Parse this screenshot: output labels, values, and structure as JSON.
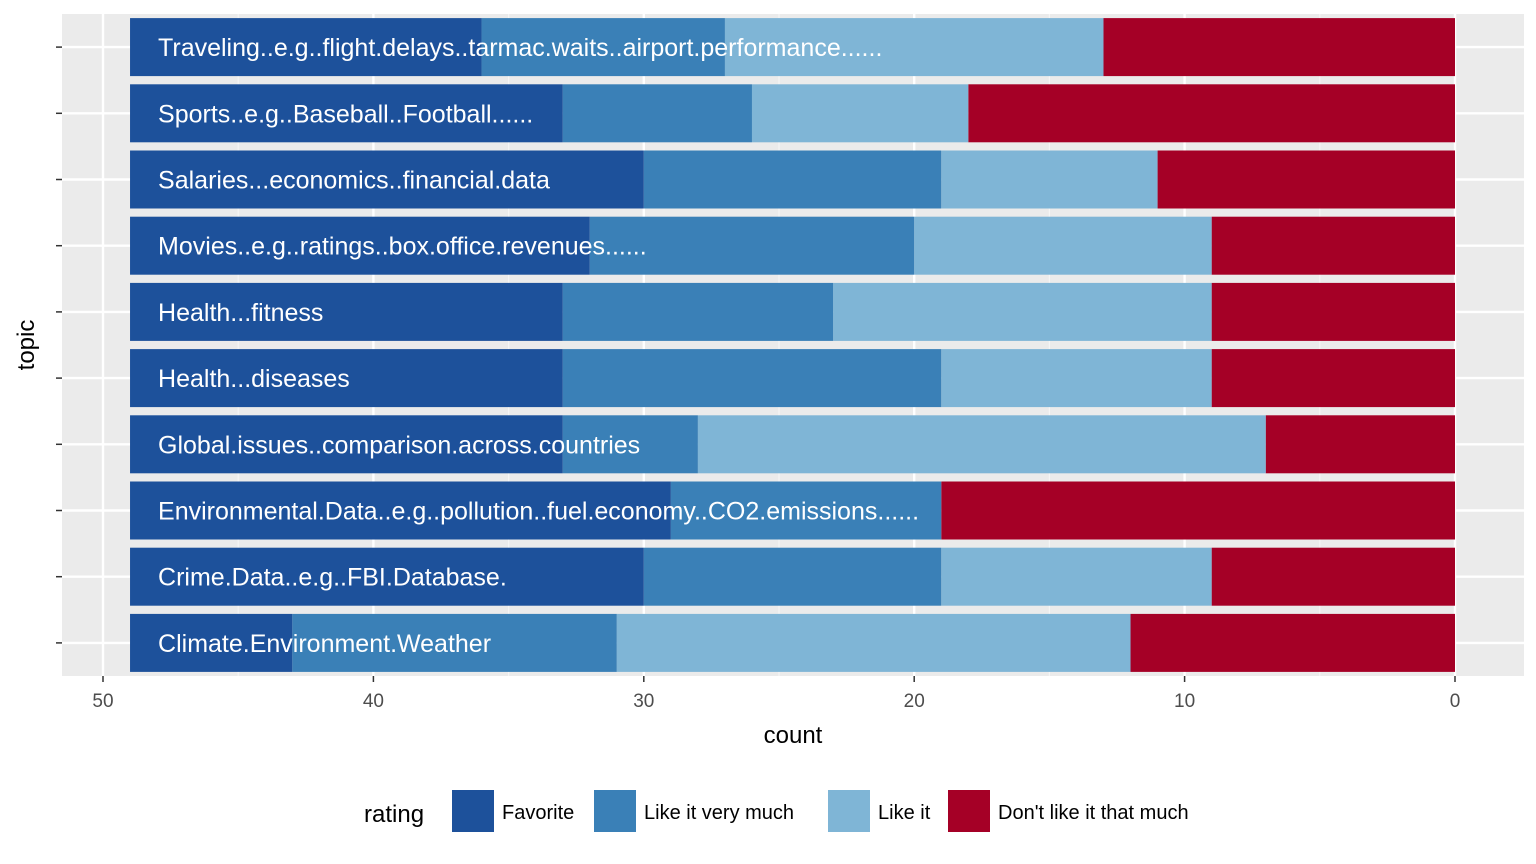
{
  "chart_data": {
    "type": "bar",
    "orientation": "horizontal",
    "stacked": true,
    "x_reversed": true,
    "xlabel": "count",
    "ylabel": "topic",
    "xlim": [
      0,
      50
    ],
    "x_ticks": [
      50,
      40,
      30,
      20,
      10,
      0
    ],
    "grid": true,
    "legend_position": "bottom",
    "legend_title": "rating",
    "categories": [
      "Traveling..e.g..flight.delays..tarmac.waits..airport.performance......",
      "Sports..e.g..Baseball..Football......",
      "Salaries...economics..financial.data",
      "Movies..e.g..ratings..box.office.revenues......",
      "Health...fitness",
      "Health...diseases",
      "Global.issues..comparison.across.countries",
      "Environmental.Data..e.g..pollution..fuel.economy..CO2.emissions......",
      "Crime.Data..e.g..FBI.Database.",
      "Climate.Environment.Weather"
    ],
    "series": [
      {
        "name": "Don't like it that much",
        "color": "#a50026",
        "values": [
          13,
          18,
          11,
          9,
          9,
          9,
          7,
          19,
          9,
          12
        ]
      },
      {
        "name": "Like it",
        "color": "#7fb5d6",
        "values": [
          14,
          8,
          8,
          11,
          14,
          10,
          21,
          0,
          10,
          19
        ]
      },
      {
        "name": "Like it very much",
        "color": "#3a80b7",
        "values": [
          9,
          7,
          11,
          12,
          10,
          14,
          5,
          10,
          11,
          12
        ]
      },
      {
        "name": "Favorite",
        "color": "#1d519b",
        "values": [
          13,
          16,
          19,
          17,
          16,
          16,
          16,
          20,
          19,
          6
        ]
      }
    ],
    "legend_order": [
      "Favorite",
      "Like it very much",
      "Like it",
      "Don't like it that much"
    ]
  }
}
